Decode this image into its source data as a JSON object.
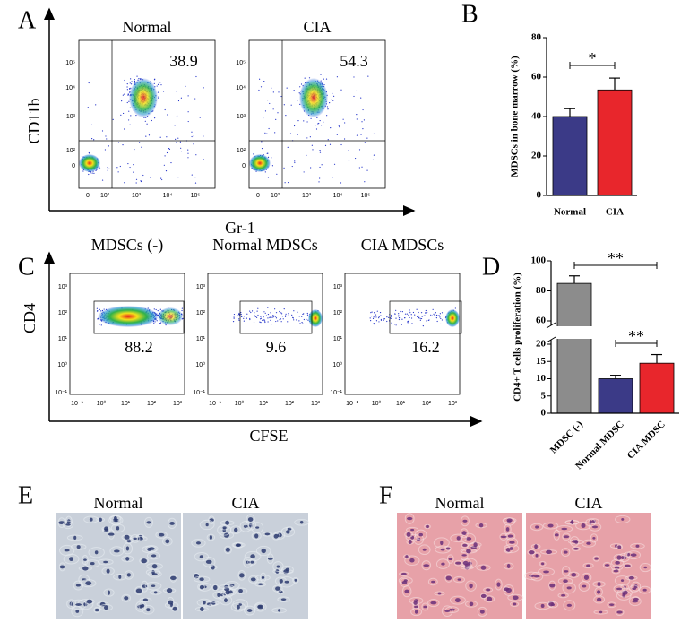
{
  "panels": {
    "A": {
      "letter": "A",
      "plots": [
        {
          "title": "Normal",
          "value": 38.9
        },
        {
          "title": "CIA",
          "value": 54.3
        }
      ],
      "y_label": "CD11b",
      "x_label": "Gr-1",
      "y_tick_labels": [
        "10⁵",
        "10⁴",
        "10³",
        "10²",
        "0"
      ],
      "x_tick_labels": [
        "0",
        "10²",
        "10³",
        "10⁴",
        "10⁵"
      ]
    },
    "B": {
      "letter": "B"
    },
    "C": {
      "letter": "C",
      "plots": [
        {
          "title": "MDSCs (-)",
          "value": 88.2
        },
        {
          "title": "Normal MDSCs",
          "value": 9.6
        },
        {
          "title": "CIA MDSCs",
          "value": 16.2
        }
      ],
      "y_label": "CD4",
      "x_label": "CFSE",
      "y_tick_labels": [
        "10³",
        "10²",
        "10¹",
        "10⁰",
        "10⁻¹"
      ],
      "x_tick_labels": [
        "10⁻¹",
        "10⁰",
        "10¹",
        "10²",
        "10³"
      ]
    },
    "D": {
      "letter": "D"
    },
    "E": {
      "letter": "E",
      "images": [
        {
          "title": "Normal"
        },
        {
          "title": "CIA"
        }
      ]
    },
    "F": {
      "letter": "F",
      "images": [
        {
          "title": "Normal"
        },
        {
          "title": "CIA"
        }
      ]
    }
  },
  "chart_data": [
    {
      "type": "bar",
      "ylabel": "MDSCs in bone marrow (%)",
      "categories": [
        "Normal",
        "CIA"
      ],
      "values": [
        40,
        53.5
      ],
      "errors": [
        4,
        6
      ],
      "colors": [
        "#3b3a87",
        "#e8262c"
      ],
      "ylim": [
        0,
        80
      ],
      "yticks": [
        0,
        20,
        40,
        60,
        80
      ],
      "annotations": [
        "*"
      ]
    },
    {
      "type": "bar",
      "ylabel": "CD4+ T cells proliferation (%)",
      "categories": [
        "MDSC (-)",
        "Normal MDSC",
        "CIA MDSC"
      ],
      "values": [
        85,
        10,
        14.5
      ],
      "errors": [
        5,
        1,
        2.5
      ],
      "colors": [
        "#8c8c8c",
        "#3b3a87",
        "#e8262c"
      ],
      "ylim": [
        0,
        100
      ],
      "ybreak": [
        20,
        60
      ],
      "yticks": [
        0,
        5,
        10,
        15,
        20,
        60,
        80,
        100
      ],
      "annotations": [
        "**",
        "**"
      ]
    }
  ]
}
